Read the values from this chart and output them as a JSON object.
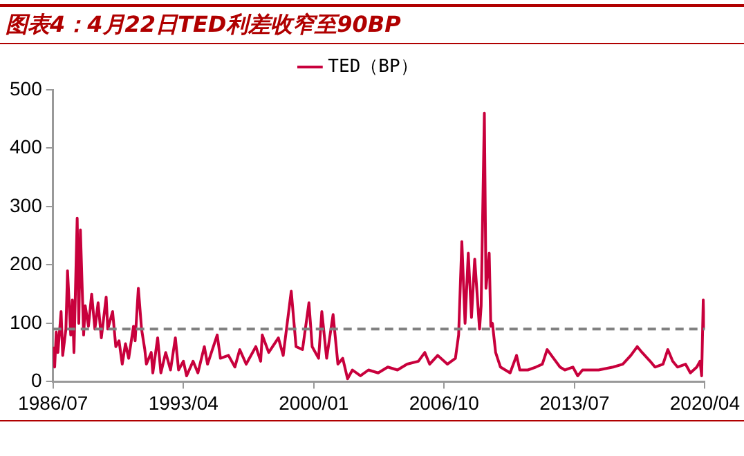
{
  "chart_data": {
    "type": "line",
    "title": "图表4：4月22日TED利差收窄至90BP",
    "legend": "top",
    "x": [
      "1986-07",
      "1986-08",
      "1986-09",
      "1986-10",
      "1986-12",
      "1987-01",
      "1987-03",
      "1987-04",
      "1987-06",
      "1987-07",
      "1987-08",
      "1987-10",
      "1987-11",
      "1987-12",
      "1988-02",
      "1988-03",
      "1988-05",
      "1988-07",
      "1988-09",
      "1988-11",
      "1989-01",
      "1989-04",
      "1989-05",
      "1989-08",
      "1989-10",
      "1989-12",
      "1990-02",
      "1990-04",
      "1990-06",
      "1990-09",
      "1990-10",
      "1990-12",
      "1991-02",
      "1991-04",
      "1991-05",
      "1991-08",
      "1991-09",
      "1991-12",
      "1992-02",
      "1992-05",
      "1992-08",
      "1992-11",
      "1993-01",
      "1993-04",
      "1993-06",
      "1993-10",
      "1994-01",
      "1994-05",
      "1994-07",
      "1995-01",
      "1995-03",
      "1995-08",
      "1995-12",
      "1996-03",
      "1996-07",
      "1997-01",
      "1997-04",
      "1997-05",
      "1997-09",
      "1998-03",
      "1998-06",
      "1998-11",
      "1999-02",
      "1999-06",
      "1999-10",
      "1999-12",
      "2000-04",
      "2000-06",
      "2000-09",
      "2001-01",
      "2001-04",
      "2001-07",
      "2001-10",
      "2002-01",
      "2002-06",
      "2002-11",
      "2003-05",
      "2003-11",
      "2004-05",
      "2004-11",
      "2005-06",
      "2005-10",
      "2006-01",
      "2006-06",
      "2006-12",
      "2007-05",
      "2007-07",
      "2007-09",
      "2007-11",
      "2008-01",
      "2008-03",
      "2008-05",
      "2008-08",
      "2008-09",
      "2008-11",
      "2008-12",
      "2009-02",
      "2009-03",
      "2009-04",
      "2009-06",
      "2009-09",
      "2009-12",
      "2010-03",
      "2010-07",
      "2010-09",
      "2011-02",
      "2011-07",
      "2011-11",
      "2012-02",
      "2012-06",
      "2012-10",
      "2013-01",
      "2013-06",
      "2013-09",
      "2013-12",
      "2014-10",
      "2015-07",
      "2016-01",
      "2016-06",
      "2016-10",
      "2017-01",
      "2017-06",
      "2017-09",
      "2018-02",
      "2018-05",
      "2018-08",
      "2018-11",
      "2019-04",
      "2019-07",
      "2019-11",
      "2020-01",
      "2020-02",
      "2020-03",
      "2020-04"
    ],
    "series": [
      {
        "name": "TED（BP）",
        "color": "#c8003c",
        "values": [
          60,
          25,
          85,
          50,
          120,
          45,
          90,
          190,
          80,
          140,
          50,
          280,
          100,
          260,
          80,
          130,
          95,
          150,
          90,
          135,
          75,
          145,
          90,
          120,
          60,
          70,
          30,
          65,
          40,
          95,
          70,
          160,
          90,
          55,
          30,
          50,
          15,
          75,
          15,
          50,
          20,
          75,
          20,
          35,
          10,
          35,
          15,
          60,
          30,
          80,
          40,
          45,
          25,
          55,
          30,
          60,
          35,
          80,
          50,
          75,
          45,
          155,
          60,
          55,
          135,
          60,
          40,
          120,
          40,
          115,
          30,
          40,
          5,
          20,
          10,
          20,
          15,
          25,
          20,
          30,
          35,
          50,
          30,
          45,
          30,
          40,
          80,
          240,
          100,
          220,
          110,
          210,
          90,
          130,
          460,
          160,
          220,
          95,
          100,
          50,
          25,
          20,
          15,
          45,
          20,
          20,
          25,
          30,
          55,
          40,
          25,
          20,
          25,
          10,
          20,
          20,
          25,
          30,
          45,
          60,
          50,
          35,
          25,
          30,
          55,
          35,
          25,
          30,
          15,
          25,
          35,
          10,
          140,
          90
        ]
      }
    ],
    "xlim": [
      "1986-07",
      "2020-04"
    ],
    "xticks": [
      {
        "value": "1986-07",
        "label": "1986/07"
      },
      {
        "value": "1993-04",
        "label": "1993/04"
      },
      {
        "value": "2000-01",
        "label": "2000/01"
      },
      {
        "value": "2006-10",
        "label": "2006/10"
      },
      {
        "value": "2013-07",
        "label": "2013/07"
      },
      {
        "value": "2020-04",
        "label": "2020/04"
      }
    ],
    "ylim": [
      0,
      500
    ],
    "yticks": [
      0,
      100,
      200,
      300,
      400,
      500
    ],
    "ref_lines": [
      {
        "axis": "y",
        "value": 90,
        "color": "#808080",
        "line_style": "dashed"
      }
    ]
  }
}
